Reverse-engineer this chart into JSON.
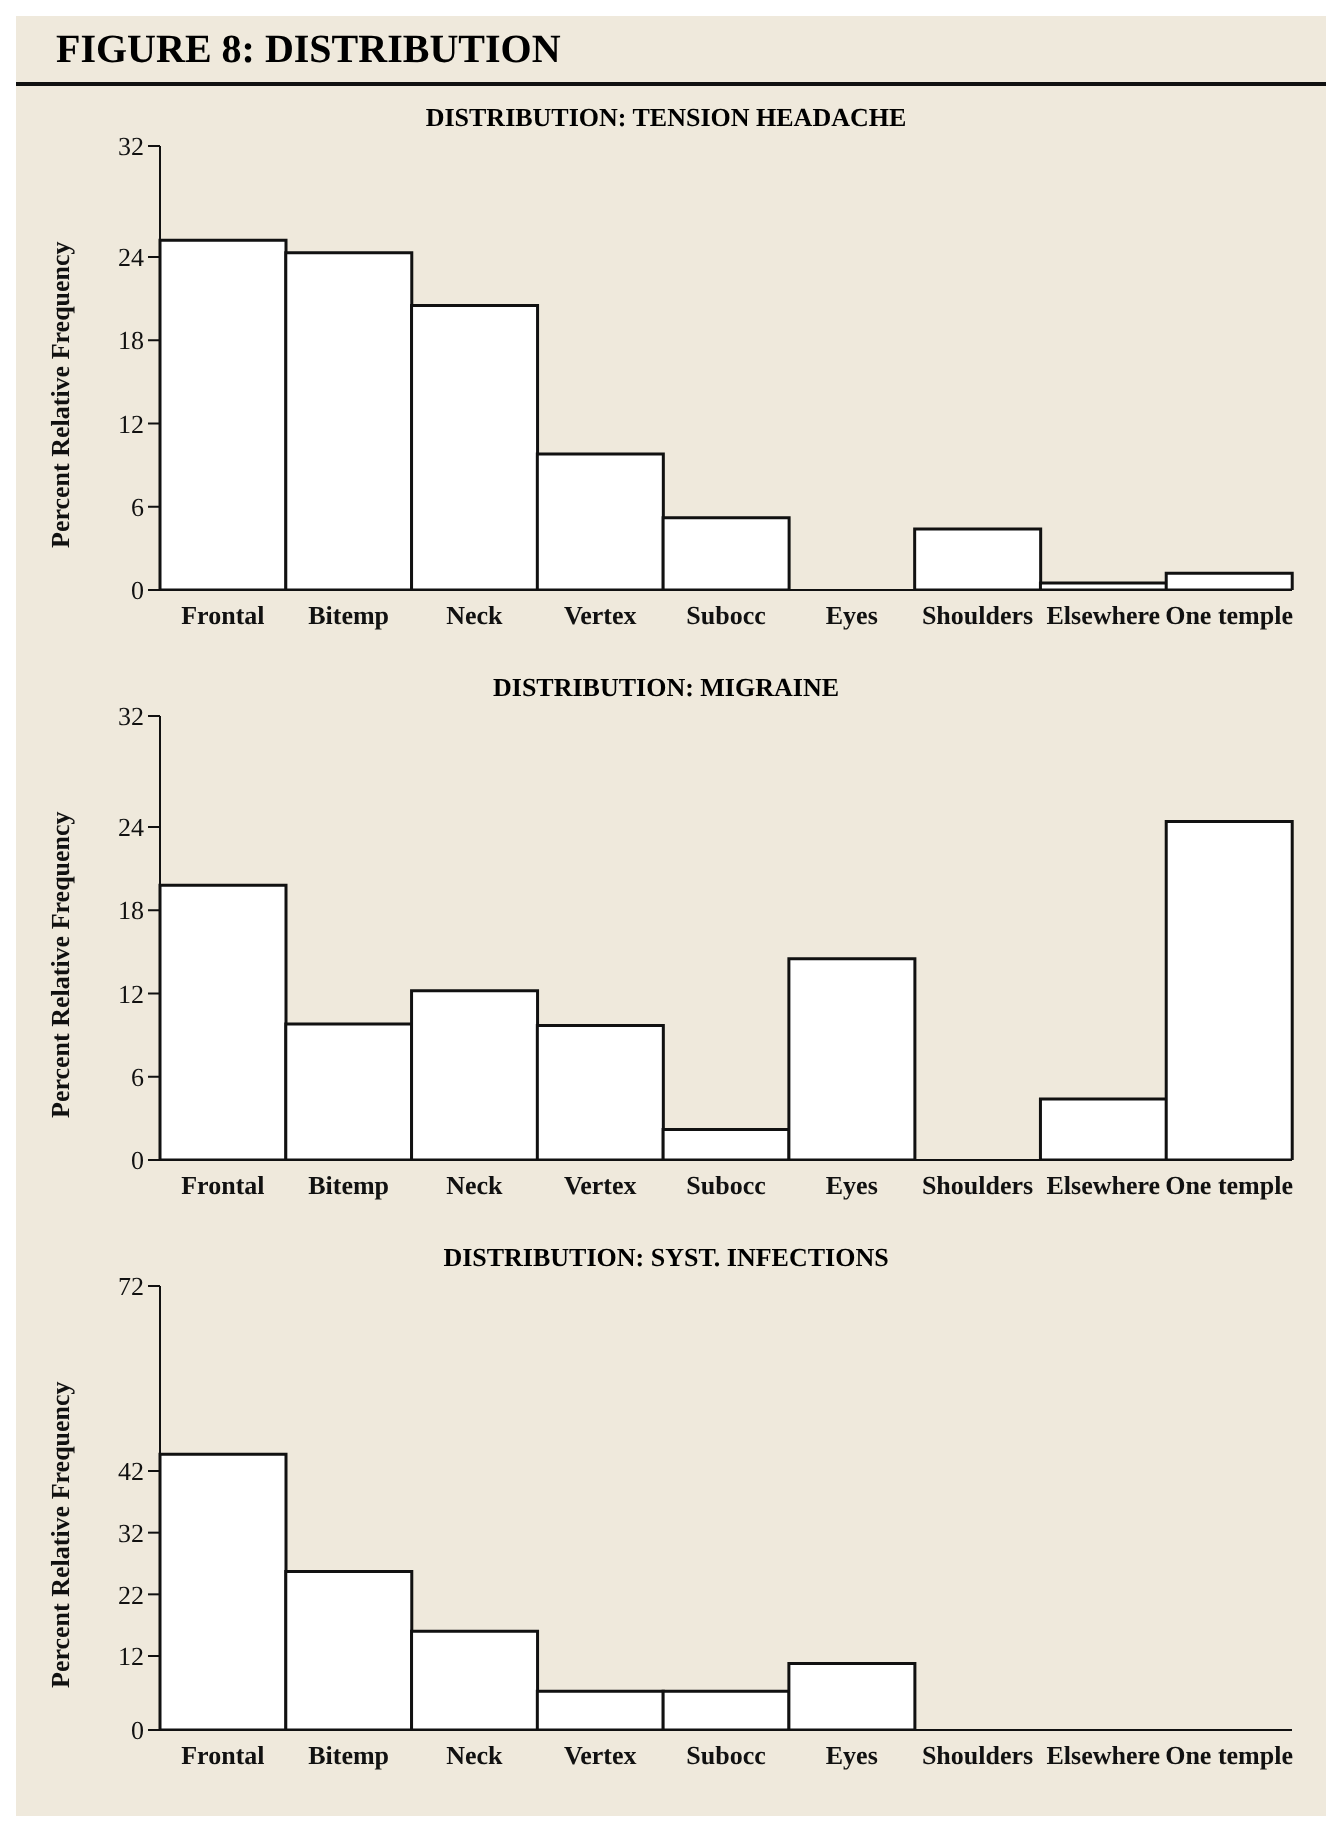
{
  "chart_data": [
    {
      "type": "bar",
      "title": "DISTRIBUTION: TENSION HEADACHE",
      "annotations": [
        "FIGURE 8: DISTRIBUTION"
      ],
      "ylabel": "Percent Relative Frequency",
      "categories": [
        "Frontal",
        "Bitemp",
        "Neck",
        "Vertex",
        "Subocc",
        "Eyes",
        "Shoulders",
        "Elsewhere",
        "One temple"
      ],
      "values": [
        25.2,
        24.3,
        20.5,
        9.8,
        5.2,
        0,
        4.4,
        0.5,
        1.2
      ],
      "color": "#ffffff",
      "ylim": [
        0,
        32
      ],
      "yticks": [
        0,
        6,
        12,
        18,
        24,
        32
      ],
      "grid": false,
      "legend": false
    },
    {
      "type": "bar",
      "title": "DISTRIBUTION: MIGRAINE",
      "ylabel": "Percent Relative Frequency",
      "categories": [
        "Frontal",
        "Bitemp",
        "Neck",
        "Vertex",
        "Subocc",
        "Eyes",
        "Shoulders",
        "Elsewhere",
        "One temple"
      ],
      "values": [
        19.8,
        9.8,
        12.2,
        9.7,
        2.2,
        14.5,
        0,
        4.4,
        24.4
      ],
      "color": "#ffffff",
      "ylim": [
        0,
        32
      ],
      "yticks": [
        0,
        6,
        12,
        18,
        24,
        32
      ],
      "grid": false,
      "legend": false
    },
    {
      "type": "bar",
      "title": "DISTRIBUTION: SYST. INFECTIONS",
      "ylabel": "Percent Relative Frequency",
      "categories": [
        "Frontal",
        "Bitemp",
        "Neck",
        "Vertex",
        "Subocc",
        "Eyes",
        "Shoulders",
        "Elsewhere",
        "One temple"
      ],
      "values": [
        44.7,
        25.7,
        16,
        6.3,
        6.3,
        10.8,
        0,
        0,
        0
      ],
      "color": "#ffffff",
      "ylim": [
        0,
        72
      ],
      "yticks": [
        0,
        12,
        22,
        32,
        42,
        72
      ],
      "grid": false,
      "legend": false
    }
  ]
}
